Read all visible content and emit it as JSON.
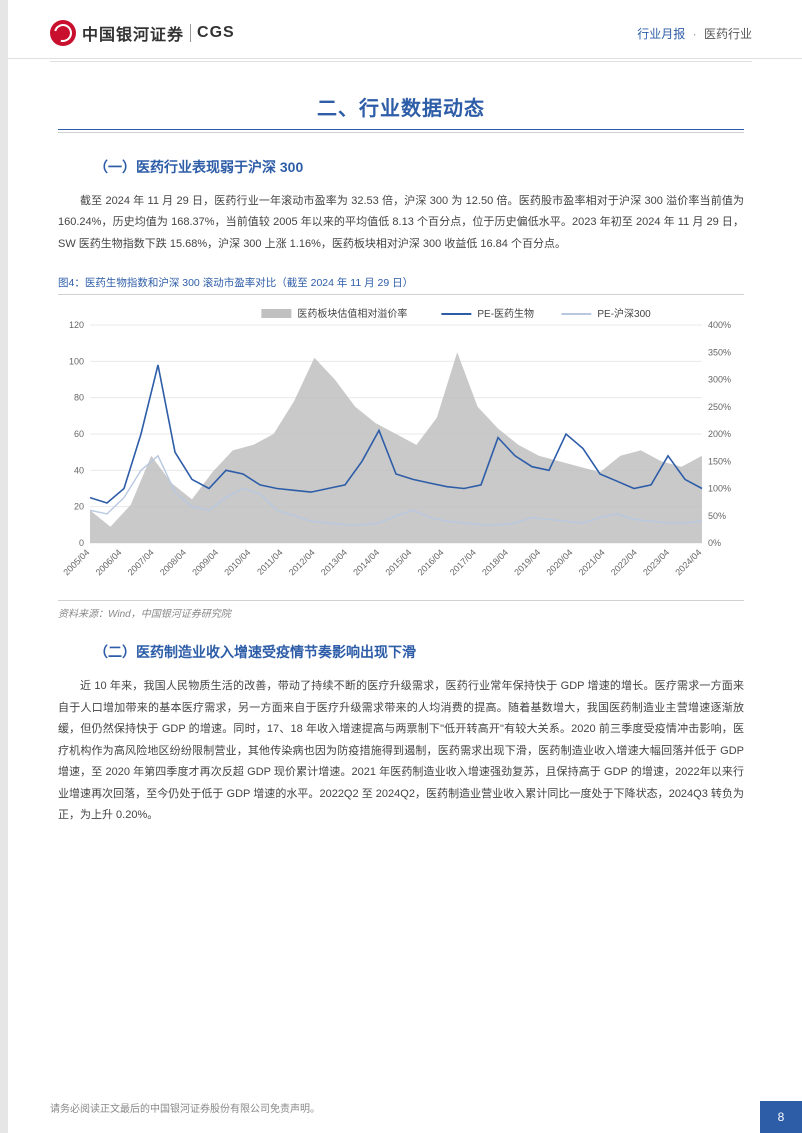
{
  "header": {
    "logo_cn": "中国银河证券",
    "logo_en": "CGS",
    "category1": "行业月报",
    "category2": "医药行业"
  },
  "section_title": "二、行业数据动态",
  "sub1_title": "（一）医药行业表现弱于沪深 300",
  "sub1_body": "截至 2024 年 11 月 29 日，医药行业一年滚动市盈率为 32.53 倍，沪深 300 为 12.50 倍。医药股市盈率相对于沪深 300 溢价率当前值为 160.24%，历史均值为 168.37%，当前值较 2005 年以来的平均值低 8.13 个百分点，位于历史偏低水平。2023 年初至 2024 年 11 月 29 日，SW 医药生物指数下跌 15.68%，沪深 300 上涨 1.16%，医药板块相对沪深 300 收益低 16.84 个百分点。",
  "chart": {
    "title": "图4：医药生物指数和沪深 300 滚动市盈率对比（截至 2024 年 11 月 29 日）",
    "source": "资料来源：Wind，中国银河证券研究院",
    "legend": {
      "area": "医药板块估值相对溢价率",
      "line1": "PE-医药生物",
      "line2": "PE-沪深300"
    },
    "y1_ticks": [
      0,
      20,
      40,
      60,
      80,
      100,
      120
    ],
    "y2_ticks": [
      "0%",
      "50%",
      "100%",
      "150%",
      "200%",
      "250%",
      "300%",
      "350%",
      "400%"
    ],
    "x_labels": [
      "2005/04",
      "2006/04",
      "2007/04",
      "2008/04",
      "2009/04",
      "2010/04",
      "2011/04",
      "2012/04",
      "2013/04",
      "2014/04",
      "2015/04",
      "2016/04",
      "2017/04",
      "2018/04",
      "2019/04",
      "2020/04",
      "2021/04",
      "2022/04",
      "2023/04",
      "2024/04"
    ],
    "y1_range": [
      0,
      120
    ],
    "y2_range": [
      0,
      400
    ],
    "colors": {
      "area_fill": "#c0c0c0",
      "line1": "#2e5da8",
      "line2": "#b8c8e0",
      "grid": "#e8e8e8",
      "axis_text": "#666666",
      "background": "#ffffff"
    },
    "font_sizes": {
      "legend": 10,
      "axis": 9
    },
    "area_data": [
      60,
      30,
      70,
      160,
      110,
      80,
      130,
      170,
      180,
      200,
      260,
      340,
      300,
      250,
      220,
      200,
      180,
      230,
      350,
      250,
      210,
      180,
      160,
      150,
      140,
      130,
      160,
      170,
      150,
      140,
      160
    ],
    "line1_data": [
      25,
      22,
      30,
      60,
      98,
      50,
      35,
      30,
      40,
      38,
      32,
      30,
      29,
      28,
      30,
      32,
      45,
      62,
      38,
      35,
      33,
      31,
      30,
      32,
      58,
      48,
      42,
      40,
      60,
      52,
      38,
      34,
      30,
      32,
      48,
      35,
      30
    ],
    "line2_data": [
      18,
      16,
      25,
      40,
      48,
      28,
      20,
      18,
      25,
      30,
      27,
      18,
      15,
      12,
      11,
      10,
      10,
      11,
      15,
      18,
      14,
      12,
      11,
      10,
      10,
      11,
      14,
      13,
      12,
      11,
      14,
      16,
      13,
      12,
      11,
      11,
      12
    ]
  },
  "sub2_title": "（二）医药制造业收入增速受疫情节奏影响出现下滑",
  "sub2_body": "近 10 年来，我国人民物质生活的改善，带动了持续不断的医疗升级需求，医药行业常年保持快于 GDP 增速的增长。医疗需求一方面来自于人口增加带来的基本医疗需求，另一方面来自于医疗升级需求带来的人均消费的提高。随着基数增大，我国医药制造业主营增速逐渐放缓，但仍然保持快于 GDP 的增速。同时，17、18 年收入增速提高与两票制下\"低开转高开\"有较大关系。2020 前三季度受疫情冲击影响，医疗机构作为高风险地区纷纷限制营业，其他传染病也因为防疫措施得到遏制，医药需求出现下滑，医药制造业收入增速大幅回落并低于 GDP 增速，至 2020 年第四季度才再次反超 GDP 现价累计增速。2021 年医药制造业收入增速强劲复苏，且保持高于 GDP 的增速，2022年以来行业增速再次回落，至今仍处于低于 GDP 增速的水平。2022Q2 至 2024Q2，医药制造业营业收入累计同比一度处于下降状态，2024Q3 转负为正，为上升 0.20%。",
  "footer": {
    "disclaimer": "请务必阅读正文最后的中国银河证券股份有限公司免责声明。",
    "page": "8"
  }
}
